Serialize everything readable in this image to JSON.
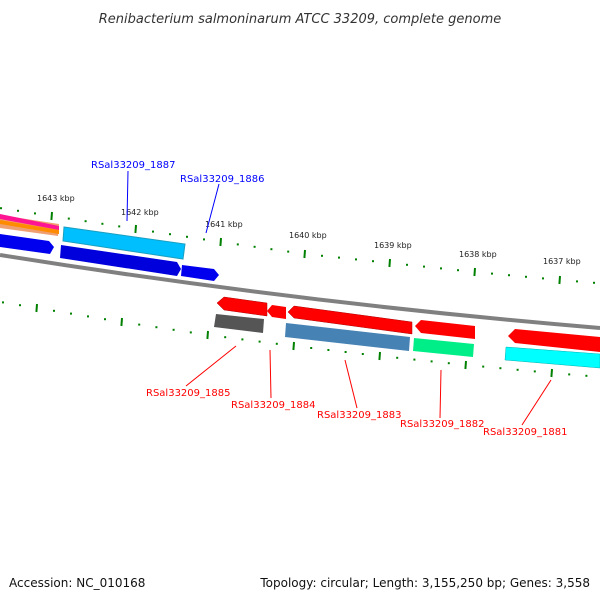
{
  "title": "Renibacterium salmoninarum ATCC 33209, complete genome",
  "footer": {
    "accession": "Accession: NC_010168",
    "summary": "Topology: circular; Length: 3,155,250 bp; Genes: 3,558"
  },
  "scale_labels": [
    "1643 kbp",
    "1642 kbp",
    "1641 kbp",
    "1640 kbp",
    "1639 kbp",
    "1638 kbp",
    "1637 kbp"
  ],
  "gene_labels": {
    "forward": [
      "RSal33209_1887",
      "RSal33209_1886"
    ],
    "reverse": [
      "RSal33209_1885",
      "RSal33209_1884",
      "RSal33209_1883",
      "RSal33209_1882",
      "RSal33209_1881"
    ]
  },
  "colors": {
    "forward_label": "#0000ff",
    "reverse_label": "#ff0000",
    "tick": "#008000",
    "backbone": "#808080"
  }
}
